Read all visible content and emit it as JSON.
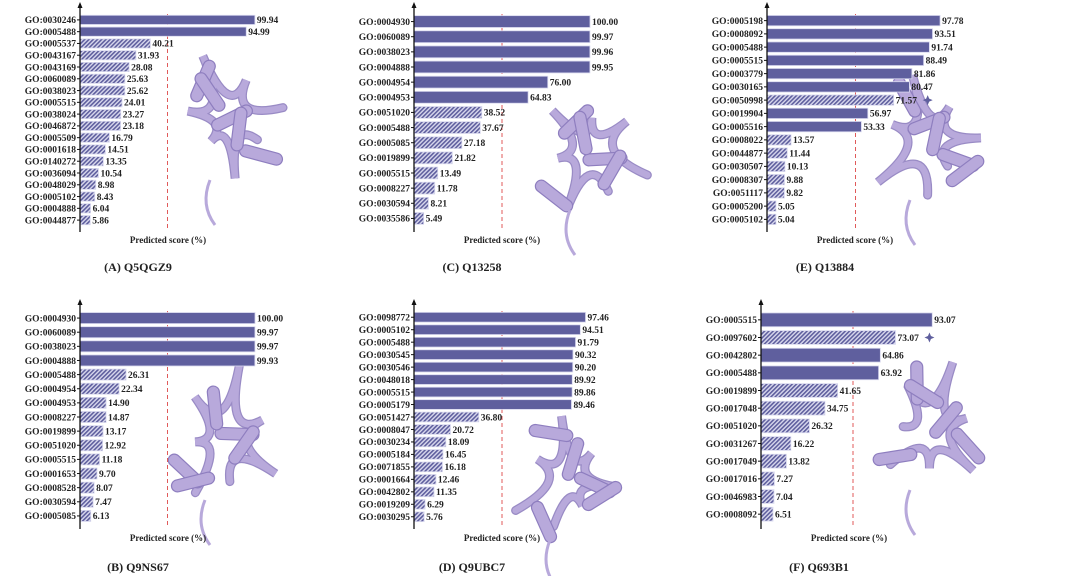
{
  "colors": {
    "solid": "#5f5f9e",
    "hatch": "#5f5f9e",
    "threshold": "#e05a5a",
    "structure": "#b8a9db",
    "structure_edge": "#8e7ebf"
  },
  "chart_data": [
    {
      "type": "bar",
      "orientation": "horizontal",
      "caption": "(A) Q5QGZ9",
      "xlabel": "Predicted score (%)",
      "threshold": 50,
      "xlim": [
        0,
        100
      ],
      "categories": [
        "GO:0030246",
        "GO:0005488",
        "GO:0005537",
        "GO:0043167",
        "GO:0043169",
        "GO:0060089",
        "GO:0038023",
        "GO:0005515",
        "GO:0038024",
        "GO:0046872",
        "GO:0005509",
        "GO:0001618",
        "GO:0140272",
        "GO:0036094",
        "GO:0048029",
        "GO:0005102",
        "GO:0004888",
        "GO:0044877"
      ],
      "values": [
        99.94,
        94.99,
        40.21,
        31.93,
        28.08,
        25.63,
        25.62,
        24.01,
        23.27,
        23.18,
        16.79,
        14.51,
        13.35,
        10.54,
        8.98,
        8.43,
        6.04,
        5.86
      ],
      "labels": [
        "99.94",
        "94.99",
        "40.21",
        "31.93",
        "28.08",
        "25.63",
        "25.62",
        "24.01",
        "23.27",
        "23.18",
        "16.79",
        "14.51",
        "13.35",
        "10.54",
        "8.98",
        "8.43",
        "6.04",
        "5.86"
      ],
      "hatched": [
        false,
        false,
        true,
        true,
        true,
        true,
        true,
        true,
        true,
        true,
        true,
        true,
        true,
        true,
        true,
        true,
        true,
        true
      ],
      "star": -1
    },
    {
      "type": "bar",
      "orientation": "horizontal",
      "caption": "(C) Q13258",
      "xlabel": "Predicted score (%)",
      "threshold": 50,
      "xlim": [
        0,
        100
      ],
      "categories": [
        "GO:0004930",
        "GO:0060089",
        "GO:0038023",
        "GO:0004888",
        "GO:0004954",
        "GO:0004953",
        "GO:0051020",
        "GO:0005488",
        "GO:0005085",
        "GO:0019899",
        "GO:0005515",
        "GO:0008227",
        "GO:0030594",
        "GO:0035586"
      ],
      "values": [
        100.0,
        99.97,
        99.96,
        99.95,
        76.0,
        64.83,
        38.52,
        37.67,
        27.18,
        21.82,
        13.49,
        11.78,
        8.21,
        5.49
      ],
      "labels": [
        "100.00",
        "99.97",
        "99.96",
        "99.95",
        "76.00",
        "64.83",
        "38.52",
        "37.67",
        "27.18",
        "21.82",
        "13.49",
        "11.78",
        "8.21",
        "5.49"
      ],
      "hatched": [
        false,
        false,
        false,
        false,
        false,
        false,
        true,
        true,
        true,
        true,
        true,
        true,
        true,
        true
      ],
      "star": -1
    },
    {
      "type": "bar",
      "orientation": "horizontal",
      "caption": "(E) Q13884",
      "xlabel": "Predicted score (%)",
      "threshold": 50,
      "xlim": [
        0,
        100
      ],
      "categories": [
        "GO:0005198",
        "GO:0008092",
        "GO:0005488",
        "GO:0005515",
        "GO:0003779",
        "GO:0030165",
        "GO:0050998",
        "GO:0019904",
        "GO:0005516",
        "GO:0008022",
        "GO:0044877",
        "GO:0030507",
        "GO:0008307",
        "GO:0051117",
        "GO:0005200",
        "GO:0005102"
      ],
      "values": [
        97.78,
        93.51,
        91.74,
        88.49,
        81.86,
        80.47,
        71.57,
        56.97,
        53.33,
        13.57,
        11.44,
        10.13,
        9.88,
        9.82,
        5.05,
        5.04
      ],
      "labels": [
        "97.78",
        "93.51",
        "91.74",
        "88.49",
        "81.86",
        "80.47",
        "71.57",
        "56.97",
        "53.33",
        "13.57",
        "11.44",
        "10.13",
        "9.88",
        "9.82",
        "5.05",
        "5.04"
      ],
      "hatched": [
        false,
        false,
        false,
        false,
        false,
        false,
        true,
        false,
        false,
        true,
        true,
        true,
        true,
        true,
        true,
        true
      ],
      "star": 6
    },
    {
      "type": "bar",
      "orientation": "horizontal",
      "caption": "(B) Q9NS67",
      "xlabel": "Predicted score (%)",
      "threshold": 50,
      "xlim": [
        0,
        100
      ],
      "categories": [
        "GO:0004930",
        "GO:0060089",
        "GO:0038023",
        "GO:0004888",
        "GO:0005488",
        "GO:0004954",
        "GO:0004953",
        "GO:0008227",
        "GO:0019899",
        "GO:0051020",
        "GO:0005515",
        "GO:0001653",
        "GO:0008528",
        "GO:0030594",
        "GO:0005085"
      ],
      "values": [
        100.0,
        99.97,
        99.97,
        99.93,
        26.31,
        22.34,
        14.9,
        14.87,
        13.17,
        12.92,
        11.18,
        9.7,
        8.07,
        7.47,
        6.13
      ],
      "labels": [
        "100.00",
        "99.97",
        "99.97",
        "99.93",
        "26.31",
        "22.34",
        "14.90",
        "14.87",
        "13.17",
        "12.92",
        "11.18",
        "9.70",
        "8.07",
        "7.47",
        "6.13"
      ],
      "hatched": [
        false,
        false,
        false,
        false,
        true,
        true,
        true,
        true,
        true,
        true,
        true,
        true,
        true,
        true,
        true
      ],
      "star": -1
    },
    {
      "type": "bar",
      "orientation": "horizontal",
      "caption": "(D) Q9UBC7",
      "xlabel": "Predicted score (%)",
      "threshold": 50,
      "xlim": [
        0,
        100
      ],
      "categories": [
        "GO:0098772",
        "GO:0005102",
        "GO:0005488",
        "GO:0030545",
        "GO:0030546",
        "GO:0048018",
        "GO:0005515",
        "GO:0005179",
        "GO:0051427",
        "GO:0008047",
        "GO:0030234",
        "GO:0005184",
        "GO:0071855",
        "GO:0001664",
        "GO:0042802",
        "GO:0019209",
        "GO:0030295"
      ],
      "values": [
        97.46,
        94.51,
        91.79,
        90.32,
        90.2,
        89.92,
        89.86,
        89.46,
        36.8,
        20.72,
        18.09,
        16.45,
        16.18,
        12.46,
        11.35,
        6.29,
        5.76
      ],
      "labels": [
        "97.46",
        "94.51",
        "91.79",
        "90.32",
        "90.20",
        "89.92",
        "89.86",
        "89.46",
        "36.80",
        "20.72",
        "18.09",
        "16.45",
        "16.18",
        "12.46",
        "11.35",
        "6.29",
        "5.76"
      ],
      "hatched": [
        false,
        false,
        false,
        false,
        false,
        false,
        false,
        false,
        true,
        true,
        true,
        true,
        true,
        true,
        true,
        true,
        true
      ],
      "star": -1
    },
    {
      "type": "bar",
      "orientation": "horizontal",
      "caption": "(F) Q693B1",
      "xlabel": "Predicted score (%)",
      "threshold": 50,
      "xlim": [
        0,
        100
      ],
      "categories": [
        "GO:0005515",
        "GO:0097602",
        "GO:0042802",
        "GO:0005488",
        "GO:0019899",
        "GO:0017048",
        "GO:0051020",
        "GO:0031267",
        "GO:0017049",
        "GO:0017016",
        "GO:0046983",
        "GO:0008092"
      ],
      "values": [
        93.07,
        73.07,
        64.86,
        63.92,
        41.65,
        34.75,
        26.32,
        16.22,
        13.82,
        7.27,
        7.04,
        6.51
      ],
      "labels": [
        "93.07",
        "73.07",
        "64.86",
        "63.92",
        "41.65",
        "34.75",
        "26.32",
        "16.22",
        "13.82",
        "7.27",
        "7.04",
        "6.51"
      ],
      "hatched": [
        false,
        true,
        false,
        false,
        true,
        true,
        true,
        true,
        true,
        true,
        true,
        true
      ],
      "star": 1
    }
  ]
}
